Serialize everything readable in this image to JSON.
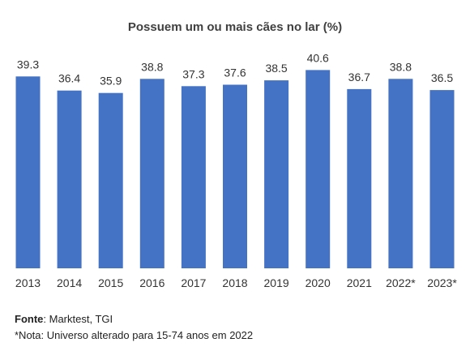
{
  "chart_data": {
    "type": "bar",
    "title": "Possuem um ou mais cães no lar (%)",
    "categories": [
      "2013",
      "2014",
      "2015",
      "2016",
      "2017",
      "2018",
      "2019",
      "2020",
      "2021",
      "2022*",
      "2023*"
    ],
    "values": [
      39.3,
      36.4,
      35.9,
      38.8,
      37.3,
      37.6,
      38.5,
      40.6,
      36.7,
      38.8,
      36.5
    ],
    "value_labels": [
      "39.3",
      "36.4",
      "35.9",
      "38.8",
      "37.3",
      "37.6",
      "38.5",
      "40.6",
      "36.7",
      "38.8",
      "36.5"
    ],
    "xlabel": "",
    "ylabel": "",
    "ylim": [
      0,
      42
    ],
    "grid": false,
    "legend": "none",
    "bar_color": "#4472C4"
  },
  "footnotes": {
    "source_label": "Fonte",
    "source_text": ": Marktest, TGI",
    "note": "*Nota: Universo alterado para 15-74 anos em 2022"
  }
}
